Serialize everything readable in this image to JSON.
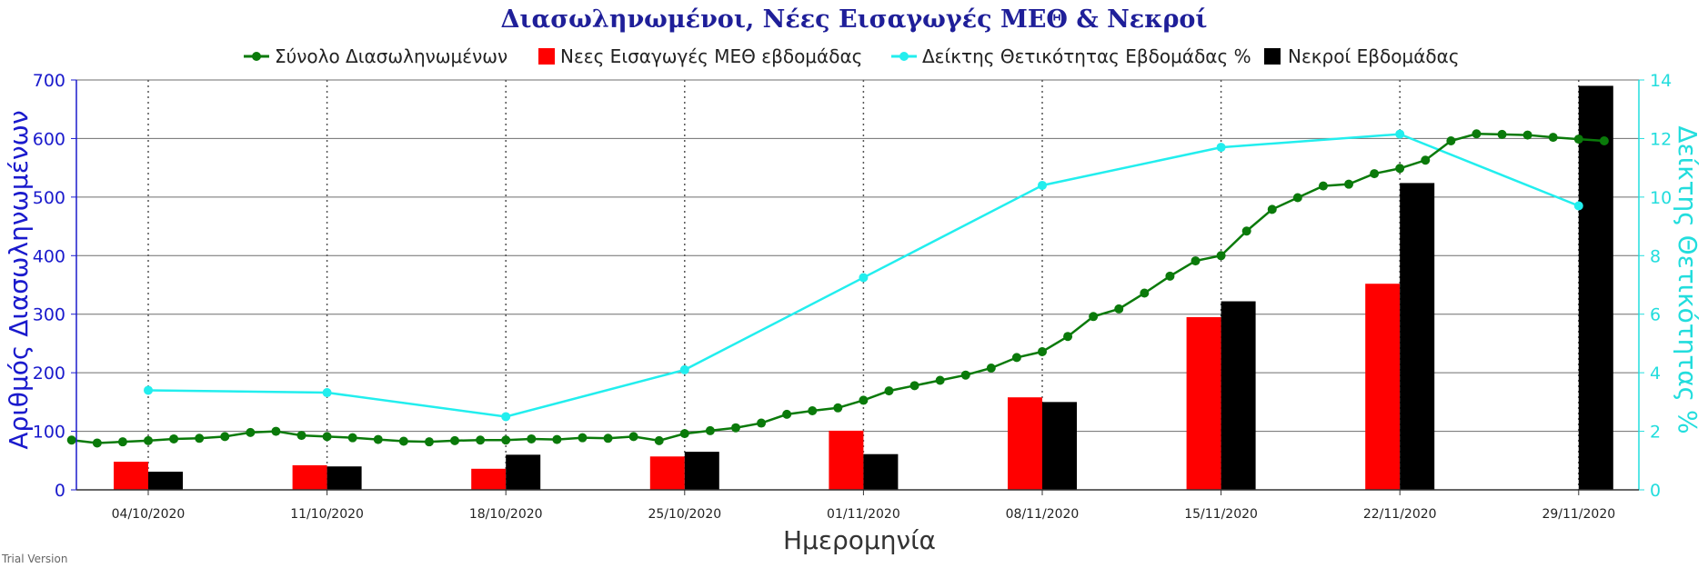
{
  "chart_data": {
    "type": "bar",
    "title": "Διασωληνωμένοι, Νέες Εισαγωγές ΜΕΘ & Νεκροί",
    "xlabel": "Ημερομηνία",
    "ylabel_left": "Αριθμός Διασωληνωμένων",
    "ylabel_right": "Δείκτης Θετικότητας %",
    "ylim_left": [
      0,
      700
    ],
    "ylim_right": [
      0,
      14
    ],
    "yticks_left": [
      "0",
      "100",
      "200",
      "300",
      "400",
      "500",
      "600",
      "700"
    ],
    "yticks_right": [
      "0",
      "2",
      "4",
      "6",
      "8",
      "10",
      "12",
      "14"
    ],
    "x_ticks": [
      "04/10/2020",
      "11/10/2020",
      "18/10/2020",
      "25/10/2020",
      "01/11/2020",
      "08/11/2020",
      "15/11/2020",
      "22/11/2020",
      "29/11/2020"
    ],
    "grid": true,
    "legend_position": "top",
    "watermark": "Trial Version",
    "colors": {
      "intubated": "#0a7a0a",
      "icu": "#ff0000",
      "positivity": "#22eeee",
      "deaths": "#000000",
      "title": "#1f1f99",
      "left_axis": "#1a1acc",
      "right_axis": "#22dddd"
    },
    "series": [
      {
        "name": "Σύνολο Διασωληνωμένων",
        "type": "line",
        "axis": "left",
        "daily_from": "01/10/2020",
        "values": [
          85,
          80,
          82,
          84,
          87,
          88,
          91,
          98,
          100,
          93,
          91,
          89,
          86,
          83,
          82,
          84,
          85,
          85,
          87,
          86,
          89,
          88,
          91,
          84,
          96,
          101,
          106,
          114,
          129,
          135,
          140,
          153,
          169,
          178,
          187,
          196,
          208,
          226,
          236,
          262,
          296,
          309,
          336,
          365,
          391,
          400,
          442,
          479,
          499,
          519,
          522,
          540,
          549,
          563,
          596,
          608,
          607,
          606,
          602,
          599,
          596
        ]
      },
      {
        "name": "Νεες Εισαγωγές ΜΕΘ εβδομάδας",
        "type": "bar",
        "axis": "left",
        "values": [
          48,
          42,
          36,
          57,
          101,
          158,
          295,
          352,
          0
        ]
      },
      {
        "name": "Δείκτης Θετικότητας Εβδομάδας %",
        "type": "line",
        "axis": "right",
        "values": [
          3.4,
          3.32,
          2.5,
          4.1,
          7.25,
          10.4,
          11.7,
          12.15,
          9.7
        ]
      },
      {
        "name": "Νεκροί Εβδομάδας",
        "type": "bar",
        "axis": "left",
        "values": [
          31,
          40,
          60,
          65,
          61,
          150,
          322,
          524,
          690
        ]
      }
    ]
  }
}
